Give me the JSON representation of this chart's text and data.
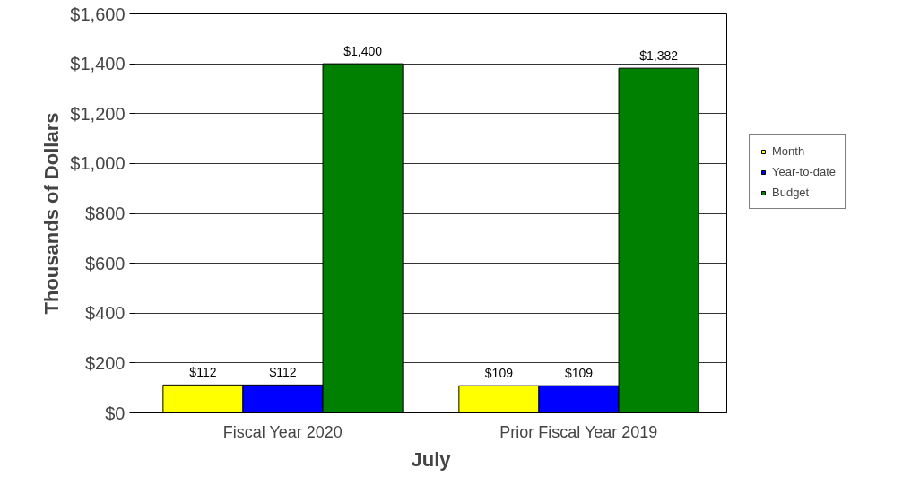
{
  "chart_data": {
    "type": "bar",
    "xlabel": "July",
    "ylabel": "Thousands of Dollars",
    "categories": [
      "Fiscal Year 2020",
      "Prior Fiscal Year 2019"
    ],
    "series": [
      {
        "name": "Month",
        "color": "#ffff00",
        "values": [
          112,
          109
        ],
        "value_labels": [
          "$112",
          "$109"
        ]
      },
      {
        "name": "Year-to-date",
        "color": "#0000ff",
        "values": [
          112,
          109
        ],
        "value_labels": [
          "$112",
          "$109"
        ]
      },
      {
        "name": "Budget",
        "color": "#008000",
        "values": [
          1400,
          1382
        ],
        "value_labels": [
          "$1,400",
          "$1,382"
        ]
      }
    ],
    "ylim": [
      0,
      1600
    ],
    "yticks": [
      {
        "value": 0,
        "label": "$0"
      },
      {
        "value": 200,
        "label": "$200"
      },
      {
        "value": 400,
        "label": "$400"
      },
      {
        "value": 600,
        "label": "$600"
      },
      {
        "value": 800,
        "label": "$800"
      },
      {
        "value": 1000,
        "label": "$1,000"
      },
      {
        "value": 1200,
        "label": "$1,200"
      },
      {
        "value": 1400,
        "label": "$1,400"
      },
      {
        "value": 1600,
        "label": "$1,600"
      }
    ],
    "grid": "y",
    "legend": "right"
  }
}
